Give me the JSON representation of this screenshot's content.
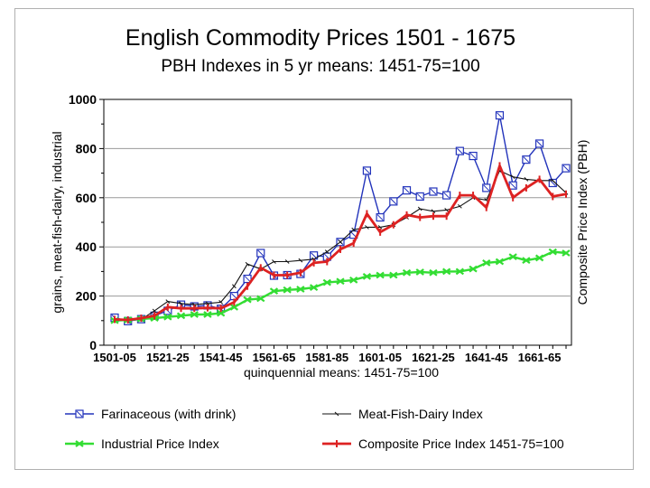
{
  "chart_data": {
    "type": "line",
    "title": "English Commodity Prices 1501 - 1675",
    "subtitle": "PBH Indexes in 5 yr means: 1451-75=100",
    "xlabel": "quinquennial means: 1451-75=100",
    "ylabel": "grains, meat-fish-dairy, industrial",
    "ylabel_right": "Composite Price Index (PBH)",
    "ylim": [
      0,
      1000
    ],
    "yticks": [
      "0",
      "200",
      "400",
      "600",
      "800",
      "1000"
    ],
    "categories": [
      "1501-05",
      "1506-10",
      "1511-15",
      "1516-20",
      "1521-25",
      "1526-30",
      "1531-35",
      "1536-40",
      "1541-45",
      "1546-50",
      "1551-55",
      "1556-60",
      "1561-65",
      "1566-70",
      "1571-75",
      "1576-80",
      "1581-85",
      "1586-90",
      "1591-95",
      "1596-00",
      "1601-05",
      "1606-10",
      "1611-15",
      "1616-20",
      "1621-25",
      "1626-30",
      "1631-35",
      "1636-40",
      "1641-45",
      "1646-50",
      "1651-55",
      "1656-60",
      "1661-65",
      "1666-70",
      "1671-75"
    ],
    "x_tick_labels": [
      "1501-05",
      "1521-25",
      "1541-45",
      "1561-65",
      "1581-85",
      "1601-05",
      "1621-25",
      "1641-45",
      "1661-65"
    ],
    "series": [
      {
        "name": "Farinaceous (with drink)",
        "color": "#2233bb",
        "marker": "square",
        "values": [
          112,
          98,
          106,
          120,
          140,
          165,
          158,
          162,
          148,
          200,
          270,
          375,
          283,
          285,
          290,
          365,
          360,
          420,
          450,
          710,
          520,
          585,
          630,
          605,
          625,
          610,
          790,
          770,
          640,
          935,
          650,
          755,
          820,
          660,
          720
        ]
      },
      {
        "name": "Meat-Fish-Dairy Index",
        "color": "#111111",
        "marker": "tick",
        "values": [
          100,
          102,
          105,
          140,
          178,
          170,
          165,
          170,
          175,
          240,
          330,
          310,
          340,
          340,
          345,
          350,
          380,
          420,
          470,
          480,
          480,
          490,
          520,
          555,
          545,
          550,
          565,
          600,
          590,
          710,
          685,
          675,
          670,
          670,
          620
        ]
      },
      {
        "name": "Industrial Price Index",
        "color": "#33dd33",
        "marker": "x",
        "values": [
          100,
          103,
          107,
          110,
          115,
          120,
          125,
          125,
          130,
          155,
          185,
          190,
          220,
          225,
          228,
          235,
          255,
          260,
          265,
          280,
          285,
          285,
          295,
          298,
          295,
          300,
          300,
          310,
          335,
          340,
          360,
          345,
          355,
          380,
          375
        ]
      },
      {
        "name": "Composite Price Index 1451-75=100",
        "color": "#dd2222",
        "marker": "plus",
        "values": [
          105,
          103,
          110,
          120,
          155,
          150,
          150,
          152,
          150,
          175,
          240,
          315,
          285,
          285,
          295,
          335,
          340,
          390,
          415,
          535,
          460,
          490,
          530,
          520,
          525,
          525,
          610,
          610,
          560,
          730,
          600,
          640,
          675,
          605,
          615
        ]
      }
    ],
    "legend_placement": "bottom"
  }
}
